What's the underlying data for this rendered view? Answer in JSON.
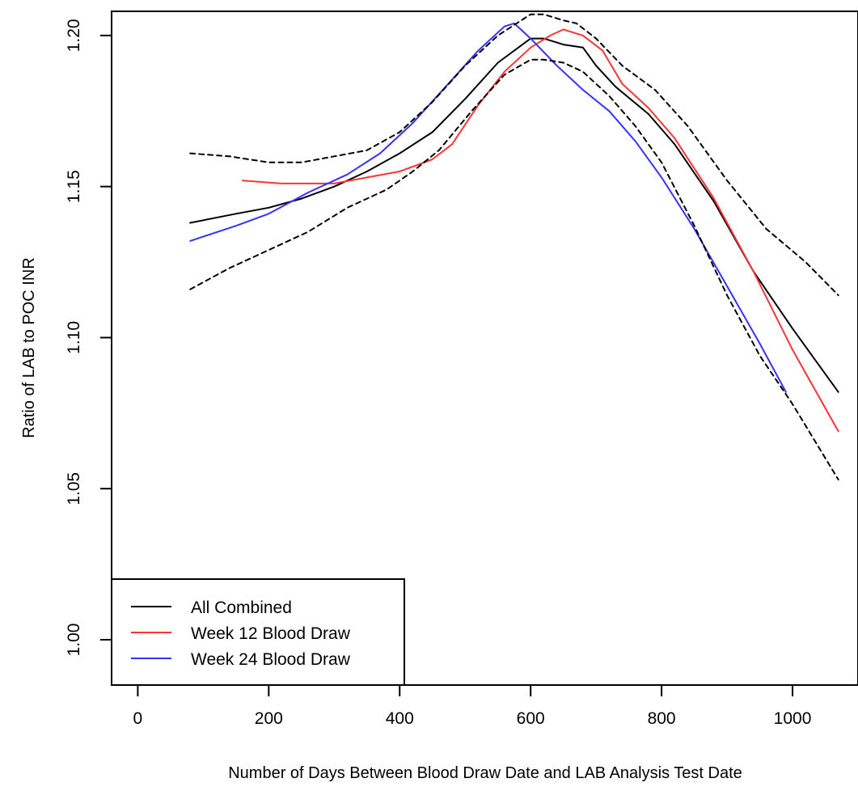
{
  "chart_data": {
    "type": "line",
    "title": "",
    "xlabel": "Number of Days Between Blood Draw Date and LAB Analysis Test Date",
    "ylabel": "Ratio of LAB to POC INR",
    "xlim": [
      -40,
      1100
    ],
    "ylim": [
      0.985,
      1.208
    ],
    "xticks": [
      0,
      200,
      400,
      600,
      800,
      1000
    ],
    "xtick_labels": [
      "0",
      "200",
      "400",
      "600",
      "800",
      "1000"
    ],
    "yticks": [
      1.0,
      1.05,
      1.1,
      1.15,
      1.2
    ],
    "ytick_labels": [
      "1.00",
      "1.05",
      "1.10",
      "1.15",
      "1.20"
    ],
    "grid": false,
    "legend_position": "bottom-left",
    "series": [
      {
        "name": "All Combined",
        "color": "#000000",
        "style": "solid",
        "in_legend": true,
        "points": [
          [
            80,
            1.138
          ],
          [
            150,
            1.141
          ],
          [
            200,
            1.143
          ],
          [
            250,
            1.146
          ],
          [
            300,
            1.15
          ],
          [
            350,
            1.155
          ],
          [
            400,
            1.161
          ],
          [
            450,
            1.168
          ],
          [
            500,
            1.179
          ],
          [
            550,
            1.191
          ],
          [
            600,
            1.199
          ],
          [
            620,
            1.199
          ],
          [
            650,
            1.197
          ],
          [
            680,
            1.196
          ],
          [
            700,
            1.19
          ],
          [
            730,
            1.183
          ],
          [
            780,
            1.174
          ],
          [
            820,
            1.164
          ],
          [
            880,
            1.145
          ],
          [
            940,
            1.122
          ],
          [
            1000,
            1.103
          ],
          [
            1070,
            1.082
          ]
        ]
      },
      {
        "name": "Week 12 Blood Draw",
        "color": "#ff3333",
        "style": "solid",
        "in_legend": true,
        "points": [
          [
            160,
            1.152
          ],
          [
            220,
            1.151
          ],
          [
            300,
            1.151
          ],
          [
            350,
            1.153
          ],
          [
            400,
            1.155
          ],
          [
            450,
            1.159
          ],
          [
            480,
            1.164
          ],
          [
            520,
            1.177
          ],
          [
            560,
            1.188
          ],
          [
            600,
            1.196
          ],
          [
            630,
            1.2
          ],
          [
            650,
            1.202
          ],
          [
            680,
            1.2
          ],
          [
            710,
            1.195
          ],
          [
            740,
            1.184
          ],
          [
            780,
            1.176
          ],
          [
            820,
            1.166
          ],
          [
            880,
            1.146
          ],
          [
            940,
            1.122
          ],
          [
            1000,
            1.096
          ],
          [
            1070,
            1.069
          ]
        ]
      },
      {
        "name": "Week 24 Blood Draw",
        "color": "#3333ff",
        "style": "solid",
        "in_legend": true,
        "points": [
          [
            80,
            1.132
          ],
          [
            150,
            1.137
          ],
          [
            200,
            1.141
          ],
          [
            260,
            1.148
          ],
          [
            320,
            1.154
          ],
          [
            370,
            1.161
          ],
          [
            420,
            1.171
          ],
          [
            470,
            1.183
          ],
          [
            520,
            1.195
          ],
          [
            560,
            1.203
          ],
          [
            575,
            1.204
          ],
          [
            600,
            1.199
          ],
          [
            640,
            1.19
          ],
          [
            680,
            1.182
          ],
          [
            720,
            1.175
          ],
          [
            760,
            1.165
          ],
          [
            800,
            1.153
          ],
          [
            850,
            1.136
          ],
          [
            900,
            1.117
          ],
          [
            950,
            1.098
          ],
          [
            990,
            1.082
          ]
        ]
      },
      {
        "name": "Upper bound",
        "color": "#000000",
        "style": "dashed",
        "in_legend": false,
        "points": [
          [
            80,
            1.161
          ],
          [
            140,
            1.16
          ],
          [
            200,
            1.158
          ],
          [
            250,
            1.158
          ],
          [
            300,
            1.16
          ],
          [
            350,
            1.162
          ],
          [
            400,
            1.168
          ],
          [
            450,
            1.178
          ],
          [
            500,
            1.19
          ],
          [
            550,
            1.2
          ],
          [
            600,
            1.207
          ],
          [
            620,
            1.207
          ],
          [
            650,
            1.205
          ],
          [
            670,
            1.204
          ],
          [
            700,
            1.199
          ],
          [
            740,
            1.19
          ],
          [
            790,
            1.182
          ],
          [
            840,
            1.17
          ],
          [
            900,
            1.152
          ],
          [
            960,
            1.136
          ],
          [
            1020,
            1.125
          ],
          [
            1070,
            1.114
          ]
        ]
      },
      {
        "name": "Lower bound",
        "color": "#000000",
        "style": "dashed",
        "in_legend": false,
        "points": [
          [
            80,
            1.116
          ],
          [
            140,
            1.123
          ],
          [
            200,
            1.129
          ],
          [
            260,
            1.135
          ],
          [
            320,
            1.143
          ],
          [
            380,
            1.149
          ],
          [
            420,
            1.155
          ],
          [
            460,
            1.162
          ],
          [
            510,
            1.175
          ],
          [
            560,
            1.187
          ],
          [
            600,
            1.192
          ],
          [
            620,
            1.192
          ],
          [
            650,
            1.191
          ],
          [
            680,
            1.188
          ],
          [
            720,
            1.18
          ],
          [
            760,
            1.17
          ],
          [
            800,
            1.158
          ],
          [
            850,
            1.137
          ],
          [
            900,
            1.114
          ],
          [
            950,
            1.094
          ],
          [
            1000,
            1.078
          ],
          [
            1070,
            1.053
          ]
        ]
      }
    ],
    "legend": {
      "items": [
        {
          "label": "All Combined",
          "color": "#000000"
        },
        {
          "label": "Week 12 Blood Draw",
          "color": "#ff3333"
        },
        {
          "label": "Week 24 Blood Draw",
          "color": "#3333ff"
        }
      ]
    }
  }
}
